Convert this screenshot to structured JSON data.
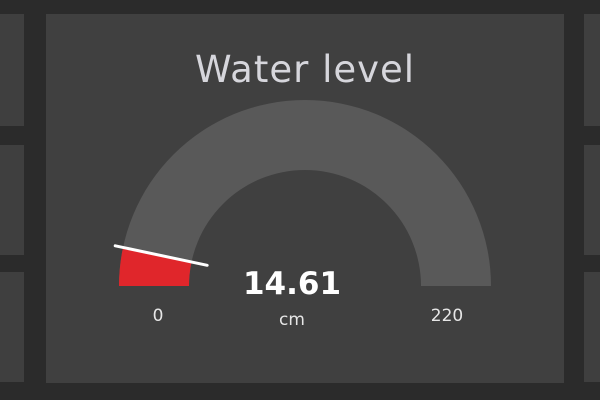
{
  "widget": {
    "title": "Water level",
    "value": "14.61",
    "unit": "cm",
    "min": "0",
    "max": "220",
    "level": 14.61,
    "range": [
      0,
      220
    ]
  },
  "colors": {
    "background": "#2b2b2b",
    "card": "#404040",
    "track": "#595959",
    "fill": "#e0262b",
    "needle": "#ffffff",
    "text": "#ffffff"
  }
}
